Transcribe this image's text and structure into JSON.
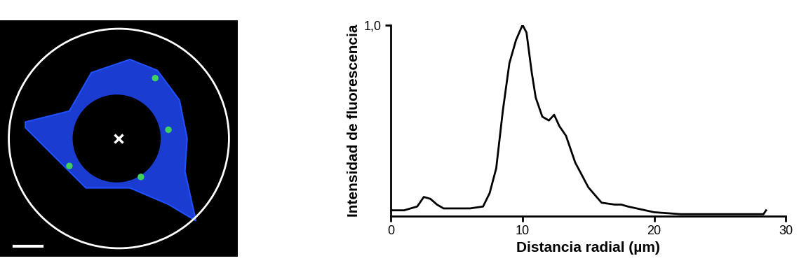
{
  "chart_data": {
    "type": "line",
    "xlabel": "Distancia radial (µm)",
    "ylabel": "Intensidad de fluorescencia",
    "x": [
      0,
      1,
      2,
      2.5,
      3,
      3.5,
      4,
      5,
      6,
      7,
      7.5,
      8,
      8.5,
      9,
      9.5,
      10,
      10.3,
      10.7,
      11,
      11.5,
      12,
      12.4,
      12.8,
      13.3,
      14,
      15,
      16,
      17,
      17.5,
      18,
      20,
      22,
      25,
      28.3,
      28.5
    ],
    "values": [
      0.03,
      0.03,
      0.05,
      0.1,
      0.09,
      0.06,
      0.04,
      0.04,
      0.04,
      0.05,
      0.12,
      0.25,
      0.55,
      0.8,
      0.92,
      1.0,
      0.96,
      0.75,
      0.62,
      0.52,
      0.5,
      0.53,
      0.47,
      0.42,
      0.28,
      0.15,
      0.07,
      0.06,
      0.06,
      0.05,
      0.02,
      0.01,
      0.01,
      0.01,
      0.03
    ],
    "color": "#000000",
    "xlim": [
      0,
      30
    ],
    "xticks": [
      0,
      10,
      20,
      30
    ],
    "ylim": [
      0,
      1.0
    ],
    "yticks": [
      {
        "value": 1.0,
        "label": "1,0"
      }
    ],
    "grid": false
  }
}
